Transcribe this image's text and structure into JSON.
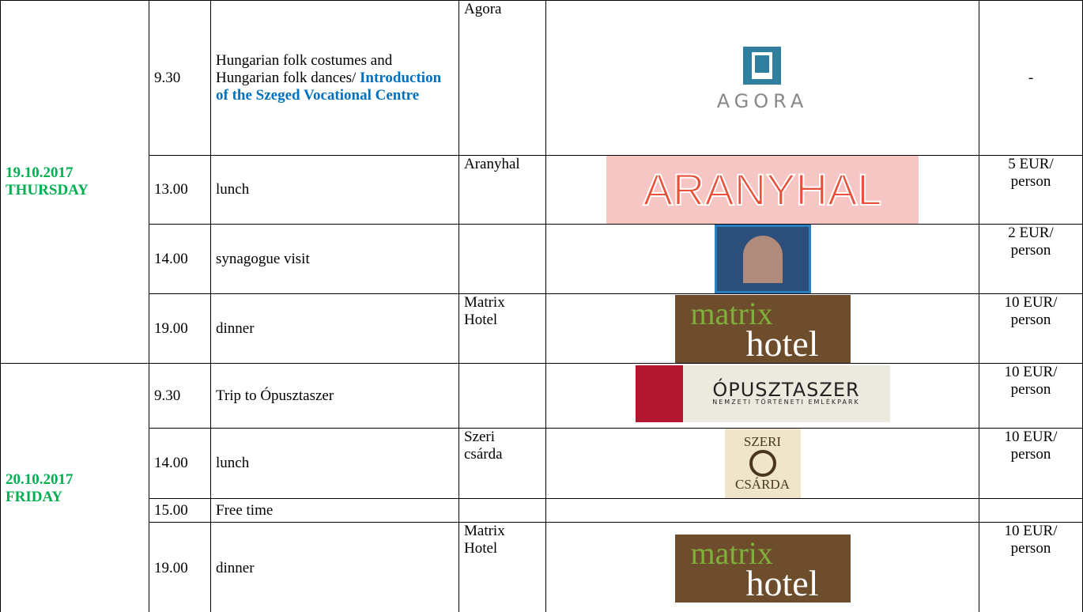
{
  "days": [
    {
      "date": "19.10.2017",
      "weekday": "THURSDAY",
      "rows": [
        {
          "time": "9.30",
          "activity": "Hungarian folk costumes and Hungarian folk dances/",
          "activity_highlight": "Introduction of the Szeged Vocational Centre",
          "venue": "Agora",
          "logo": [
            "AGORA"
          ],
          "price": "-"
        },
        {
          "time": "13.00",
          "activity": "lunch",
          "venue": "Aranyhal",
          "logo": [
            "ARANYHAL"
          ],
          "price": "5 EUR/ person"
        },
        {
          "time": "14.00",
          "activity": "synagogue visit",
          "price": "2 EUR/ person"
        },
        {
          "time": "19.00",
          "activity": "dinner",
          "venue": "Matrix Hotel",
          "logo": [
            "matrix",
            "hotel"
          ],
          "price": "10 EUR/ person"
        }
      ]
    },
    {
      "date": "20.10.2017",
      "weekday": "FRIDAY",
      "rows": [
        {
          "time": "9.30",
          "activity": "Trip to Ópusztaszer",
          "logo": [
            "ÓPUSZTASZER",
            "NEMZETI TÖRTÉNETI EMLÉKPARK"
          ],
          "price": "10 EUR/ person"
        },
        {
          "time": "14.00",
          "activity": "lunch",
          "venue": "Szeri csárda",
          "logo": [
            "SZERI",
            "CSÁRDA"
          ],
          "price": "10 EUR/ person"
        },
        {
          "time": "15.00",
          "activity": "Free time"
        },
        {
          "time": "19.00",
          "activity": "dinner",
          "venue": "Matrix Hotel",
          "logo": [
            "matrix",
            "hotel"
          ],
          "price": "10 EUR/ person"
        }
      ]
    }
  ]
}
